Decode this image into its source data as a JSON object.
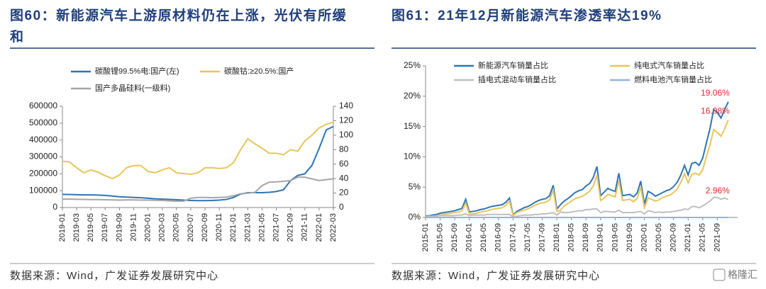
{
  "chart_data": [
    {
      "type": "line",
      "title": "图60：新能源汽车上游原材料仍在上涨，光伏有所缓和",
      "source": "数据来源：Wind，广发证券发展研究中心",
      "categories": [
        "2019-01",
        null,
        "2019-03",
        null,
        "2019-05",
        null,
        "2019-07",
        null,
        "2019-09",
        null,
        "2019-11",
        null,
        "2020-01",
        null,
        "2020-03",
        null,
        "2020-05",
        null,
        "2020-07",
        null,
        "2020-09",
        null,
        "2020-11",
        null,
        "2021-01",
        null,
        "2021-03",
        null,
        "2021-05",
        null,
        "2021-07",
        null,
        "2021-09",
        null,
        "2021-11",
        null,
        "2022-01",
        null,
        "2022-03"
      ],
      "ylim": [
        0,
        600000
      ],
      "yticks": [
        0,
        100000,
        200000,
        300000,
        400000,
        500000,
        600000
      ],
      "y2lim": [
        0,
        140
      ],
      "y2ticks": [
        0,
        20,
        40,
        60,
        80,
        100,
        120,
        140
      ],
      "series": [
        {
          "name": "碳酸锂99.5%电:国产(左)",
          "color": "#2e75b6",
          "values": [
            78000,
            77000,
            76000,
            75000,
            75000,
            74000,
            72000,
            68000,
            64000,
            62000,
            60000,
            58000,
            55000,
            52000,
            50000,
            48000,
            46000,
            44000,
            42000,
            41000,
            41000,
            42000,
            44000,
            48000,
            60000,
            80000,
            88000,
            88000,
            88000,
            90000,
            95000,
            105000,
            160000,
            190000,
            200000,
            250000,
            350000,
            460000,
            480000
          ]
        },
        {
          "name": "碳酸钴:≥20.5%:国产",
          "color": "#e8c65a",
          "axis": "y2",
          "values": [
            64,
            63,
            55,
            48,
            52,
            49,
            44,
            40,
            45,
            55,
            58,
            58,
            50,
            48,
            52,
            55,
            48,
            47,
            46,
            48,
            55,
            55,
            54,
            55,
            62,
            80,
            95,
            88,
            82,
            75,
            75,
            73,
            80,
            78,
            92,
            100,
            110,
            115,
            118
          ]
        },
        {
          "name": "国产多晶硅料(一级料)",
          "color": "#a6a6a6",
          "values": [
            50000,
            50000,
            49000,
            48000,
            47000,
            47000,
            46000,
            45000,
            44000,
            45000,
            45000,
            44000,
            44000,
            43000,
            42000,
            40000,
            38000,
            38000,
            55000,
            60000,
            60000,
            58000,
            60000,
            62000,
            70000,
            82000,
            85000,
            90000,
            130000,
            150000,
            152000,
            155000,
            160000,
            180000,
            180000,
            170000,
            160000,
            165000,
            170000
          ]
        }
      ]
    },
    {
      "type": "line",
      "title": "图61：21年12月新能源汽车渗透率达19%",
      "source": "数据来源：Wind，广发证券发展研究中心",
      "watermark": "格隆汇",
      "categories": [
        "2015-01",
        null,
        null,
        null,
        "2015-05",
        null,
        null,
        null,
        "2015-09",
        null,
        null,
        null,
        "2016-01",
        null,
        null,
        null,
        "2016-05",
        null,
        null,
        null,
        "2016-09",
        null,
        null,
        null,
        "2017-01",
        null,
        null,
        null,
        "2017-05",
        null,
        null,
        null,
        "2017-09",
        null,
        null,
        null,
        "2018-01",
        null,
        null,
        null,
        "2018-05",
        null,
        null,
        null,
        "2018-09",
        null,
        null,
        null,
        "2019-01",
        null,
        null,
        null,
        "2019-05",
        null,
        null,
        null,
        "2019-09",
        null,
        null,
        null,
        "2020-01",
        null,
        null,
        null,
        "2020-05",
        null,
        null,
        null,
        "2020-09",
        null,
        null,
        null,
        "2021-01",
        null,
        null,
        null,
        "2021-05",
        null,
        null,
        null,
        "2021-09",
        null,
        null,
        null
      ],
      "ylim": [
        0,
        25
      ],
      "yticks": [
        {
          "value": 0,
          "label": "0%"
        },
        {
          "value": 5,
          "label": "5%"
        },
        {
          "value": 10,
          "label": "10%"
        },
        {
          "value": 15,
          "label": "15%"
        },
        {
          "value": 20,
          "label": "20%"
        },
        {
          "value": 25,
          "label": "25%"
        }
      ],
      "series": [
        {
          "name": "新能源汽车销量占比",
          "color": "#2e75b6",
          "label_color": "#e0282e",
          "values": [
            0.2,
            0.3,
            0.4,
            0.5,
            0.7,
            0.8,
            0.9,
            1.0,
            1.1,
            1.3,
            1.5,
            3.0,
            0.9,
            1.0,
            1.1,
            1.3,
            1.4,
            1.6,
            1.8,
            1.9,
            2.0,
            2.1,
            2.5,
            3.2,
            0.4,
            1.0,
            1.3,
            1.6,
            1.8,
            2.1,
            2.5,
            2.8,
            3.0,
            3.1,
            3.6,
            5.3,
            1.4,
            2.1,
            2.7,
            3.1,
            3.6,
            4.1,
            4.4,
            4.6,
            5.2,
            5.6,
            6.6,
            8.4,
            3.6,
            4.2,
            4.8,
            4.5,
            4.3,
            7.3,
            3.6,
            3.7,
            3.8,
            3.4,
            4.0,
            6.0,
            2.2,
            4.3,
            4.0,
            3.5,
            3.8,
            4.1,
            4.4,
            4.6,
            5.1,
            5.8,
            7.0,
            8.6,
            7.0,
            8.9,
            9.1,
            8.6,
            9.8,
            12.3,
            14.7,
            17.8,
            17.3,
            16.4,
            17.8,
            19.06
          ],
          "value_labels": [
            null,
            null,
            null,
            null,
            null,
            null,
            null,
            null,
            null,
            null,
            null,
            null,
            null,
            null,
            null,
            null,
            null,
            null,
            null,
            null,
            null,
            null,
            null,
            null,
            null,
            null,
            null,
            null,
            null,
            null,
            null,
            null,
            null,
            null,
            null,
            null,
            null,
            null,
            null,
            null,
            null,
            null,
            null,
            null,
            null,
            null,
            null,
            null,
            null,
            null,
            null,
            null,
            null,
            null,
            null,
            null,
            null,
            null,
            null,
            null,
            null,
            null,
            null,
            null,
            null,
            null,
            null,
            null,
            null,
            null,
            null,
            null,
            null,
            null,
            null,
            null,
            null,
            null,
            null,
            null,
            null,
            null,
            null,
            "19.06%"
          ]
        },
        {
          "name": "纯电式汽车销量占比",
          "color": "#e8c65a",
          "label_color": "#e0282e",
          "values": [
            0.1,
            0.2,
            0.2,
            0.3,
            0.4,
            0.5,
            0.6,
            0.7,
            0.8,
            0.9,
            1.1,
            2.4,
            0.6,
            0.6,
            0.7,
            0.9,
            1.0,
            1.1,
            1.3,
            1.4,
            1.5,
            1.6,
            2.0,
            2.7,
            0.3,
            0.8,
            1.0,
            1.2,
            1.4,
            1.7,
            2.0,
            2.3,
            2.4,
            2.5,
            2.9,
            4.5,
            1.0,
            1.2,
            1.9,
            2.3,
            2.7,
            3.1,
            3.3,
            3.5,
            3.9,
            4.3,
            5.2,
            7.0,
            2.8,
            3.2,
            3.8,
            3.6,
            3.4,
            6.1,
            2.8,
            2.9,
            3.0,
            2.6,
            3.1,
            5.0,
            1.6,
            3.2,
            3.0,
            2.7,
            2.9,
            3.3,
            3.5,
            3.7,
            4.1,
            4.7,
            5.8,
            7.2,
            5.7,
            7.1,
            7.3,
            7.0,
            7.9,
            10.0,
            12.0,
            14.5,
            14.0,
            13.4,
            14.6,
            16.08
          ],
          "value_labels": [
            null,
            null,
            null,
            null,
            null,
            null,
            null,
            null,
            null,
            null,
            null,
            null,
            null,
            null,
            null,
            null,
            null,
            null,
            null,
            null,
            null,
            null,
            null,
            null,
            null,
            null,
            null,
            null,
            null,
            null,
            null,
            null,
            null,
            null,
            null,
            null,
            null,
            null,
            null,
            null,
            null,
            null,
            null,
            null,
            null,
            null,
            null,
            null,
            null,
            null,
            null,
            null,
            null,
            null,
            null,
            null,
            null,
            null,
            null,
            null,
            null,
            null,
            null,
            null,
            null,
            null,
            null,
            null,
            null,
            null,
            null,
            null,
            null,
            null,
            null,
            null,
            null,
            null,
            null,
            null,
            null,
            null,
            null,
            "16.08%"
          ]
        },
        {
          "name": "插电式混动车销量占比",
          "color": "#bfbfbf",
          "label_color": "#e0282e",
          "values": [
            0.1,
            0.1,
            0.2,
            0.2,
            0.3,
            0.3,
            0.3,
            0.3,
            0.3,
            0.4,
            0.4,
            0.6,
            0.3,
            0.4,
            0.4,
            0.4,
            0.4,
            0.5,
            0.5,
            0.5,
            0.5,
            0.5,
            0.5,
            0.5,
            0.1,
            0.2,
            0.3,
            0.4,
            0.4,
            0.4,
            0.5,
            0.5,
            0.6,
            0.6,
            0.7,
            0.8,
            0.4,
            0.9,
            0.8,
            0.8,
            0.9,
            1.0,
            1.1,
            1.1,
            1.3,
            1.3,
            1.4,
            1.4,
            0.8,
            1.0,
            1.0,
            0.9,
            0.9,
            1.2,
            0.8,
            0.8,
            0.8,
            0.8,
            0.9,
            1.0,
            0.6,
            1.1,
            1.0,
            0.8,
            0.9,
            0.8,
            0.9,
            0.9,
            1.0,
            1.1,
            1.2,
            1.4,
            1.3,
            1.8,
            1.8,
            1.6,
            1.9,
            2.3,
            2.7,
            3.3,
            3.3,
            3.0,
            3.2,
            2.96
          ],
          "value_labels": [
            null,
            null,
            null,
            null,
            null,
            null,
            null,
            null,
            null,
            null,
            null,
            null,
            null,
            null,
            null,
            null,
            null,
            null,
            null,
            null,
            null,
            null,
            null,
            null,
            null,
            null,
            null,
            null,
            null,
            null,
            null,
            null,
            null,
            null,
            null,
            null,
            null,
            null,
            null,
            null,
            null,
            null,
            null,
            null,
            null,
            null,
            null,
            null,
            null,
            null,
            null,
            null,
            null,
            null,
            null,
            null,
            null,
            null,
            null,
            null,
            null,
            null,
            null,
            null,
            null,
            null,
            null,
            null,
            null,
            null,
            null,
            null,
            null,
            null,
            null,
            null,
            null,
            null,
            null,
            null,
            null,
            null,
            null,
            "2.96%"
          ]
        },
        {
          "name": "燃料电池汽车销量占比",
          "color": "#8eb4e3",
          "values": [
            0,
            0,
            0,
            0,
            0,
            0,
            0,
            0,
            0,
            0,
            0,
            0,
            0,
            0,
            0,
            0,
            0,
            0,
            0,
            0,
            0,
            0,
            0,
            0,
            0,
            0,
            0,
            0,
            0,
            0,
            0,
            0,
            0,
            0,
            0,
            0,
            0,
            0,
            0,
            0,
            0,
            0,
            0,
            0,
            0,
            0,
            0,
            0,
            0,
            0,
            0,
            0,
            0,
            0,
            0,
            0,
            0,
            0,
            0,
            0,
            0,
            0,
            0,
            0,
            0,
            0,
            0,
            0,
            0,
            0,
            0,
            0,
            0,
            0,
            0,
            0,
            0,
            0,
            0,
            0,
            0,
            0,
            0,
            0
          ]
        }
      ]
    }
  ]
}
